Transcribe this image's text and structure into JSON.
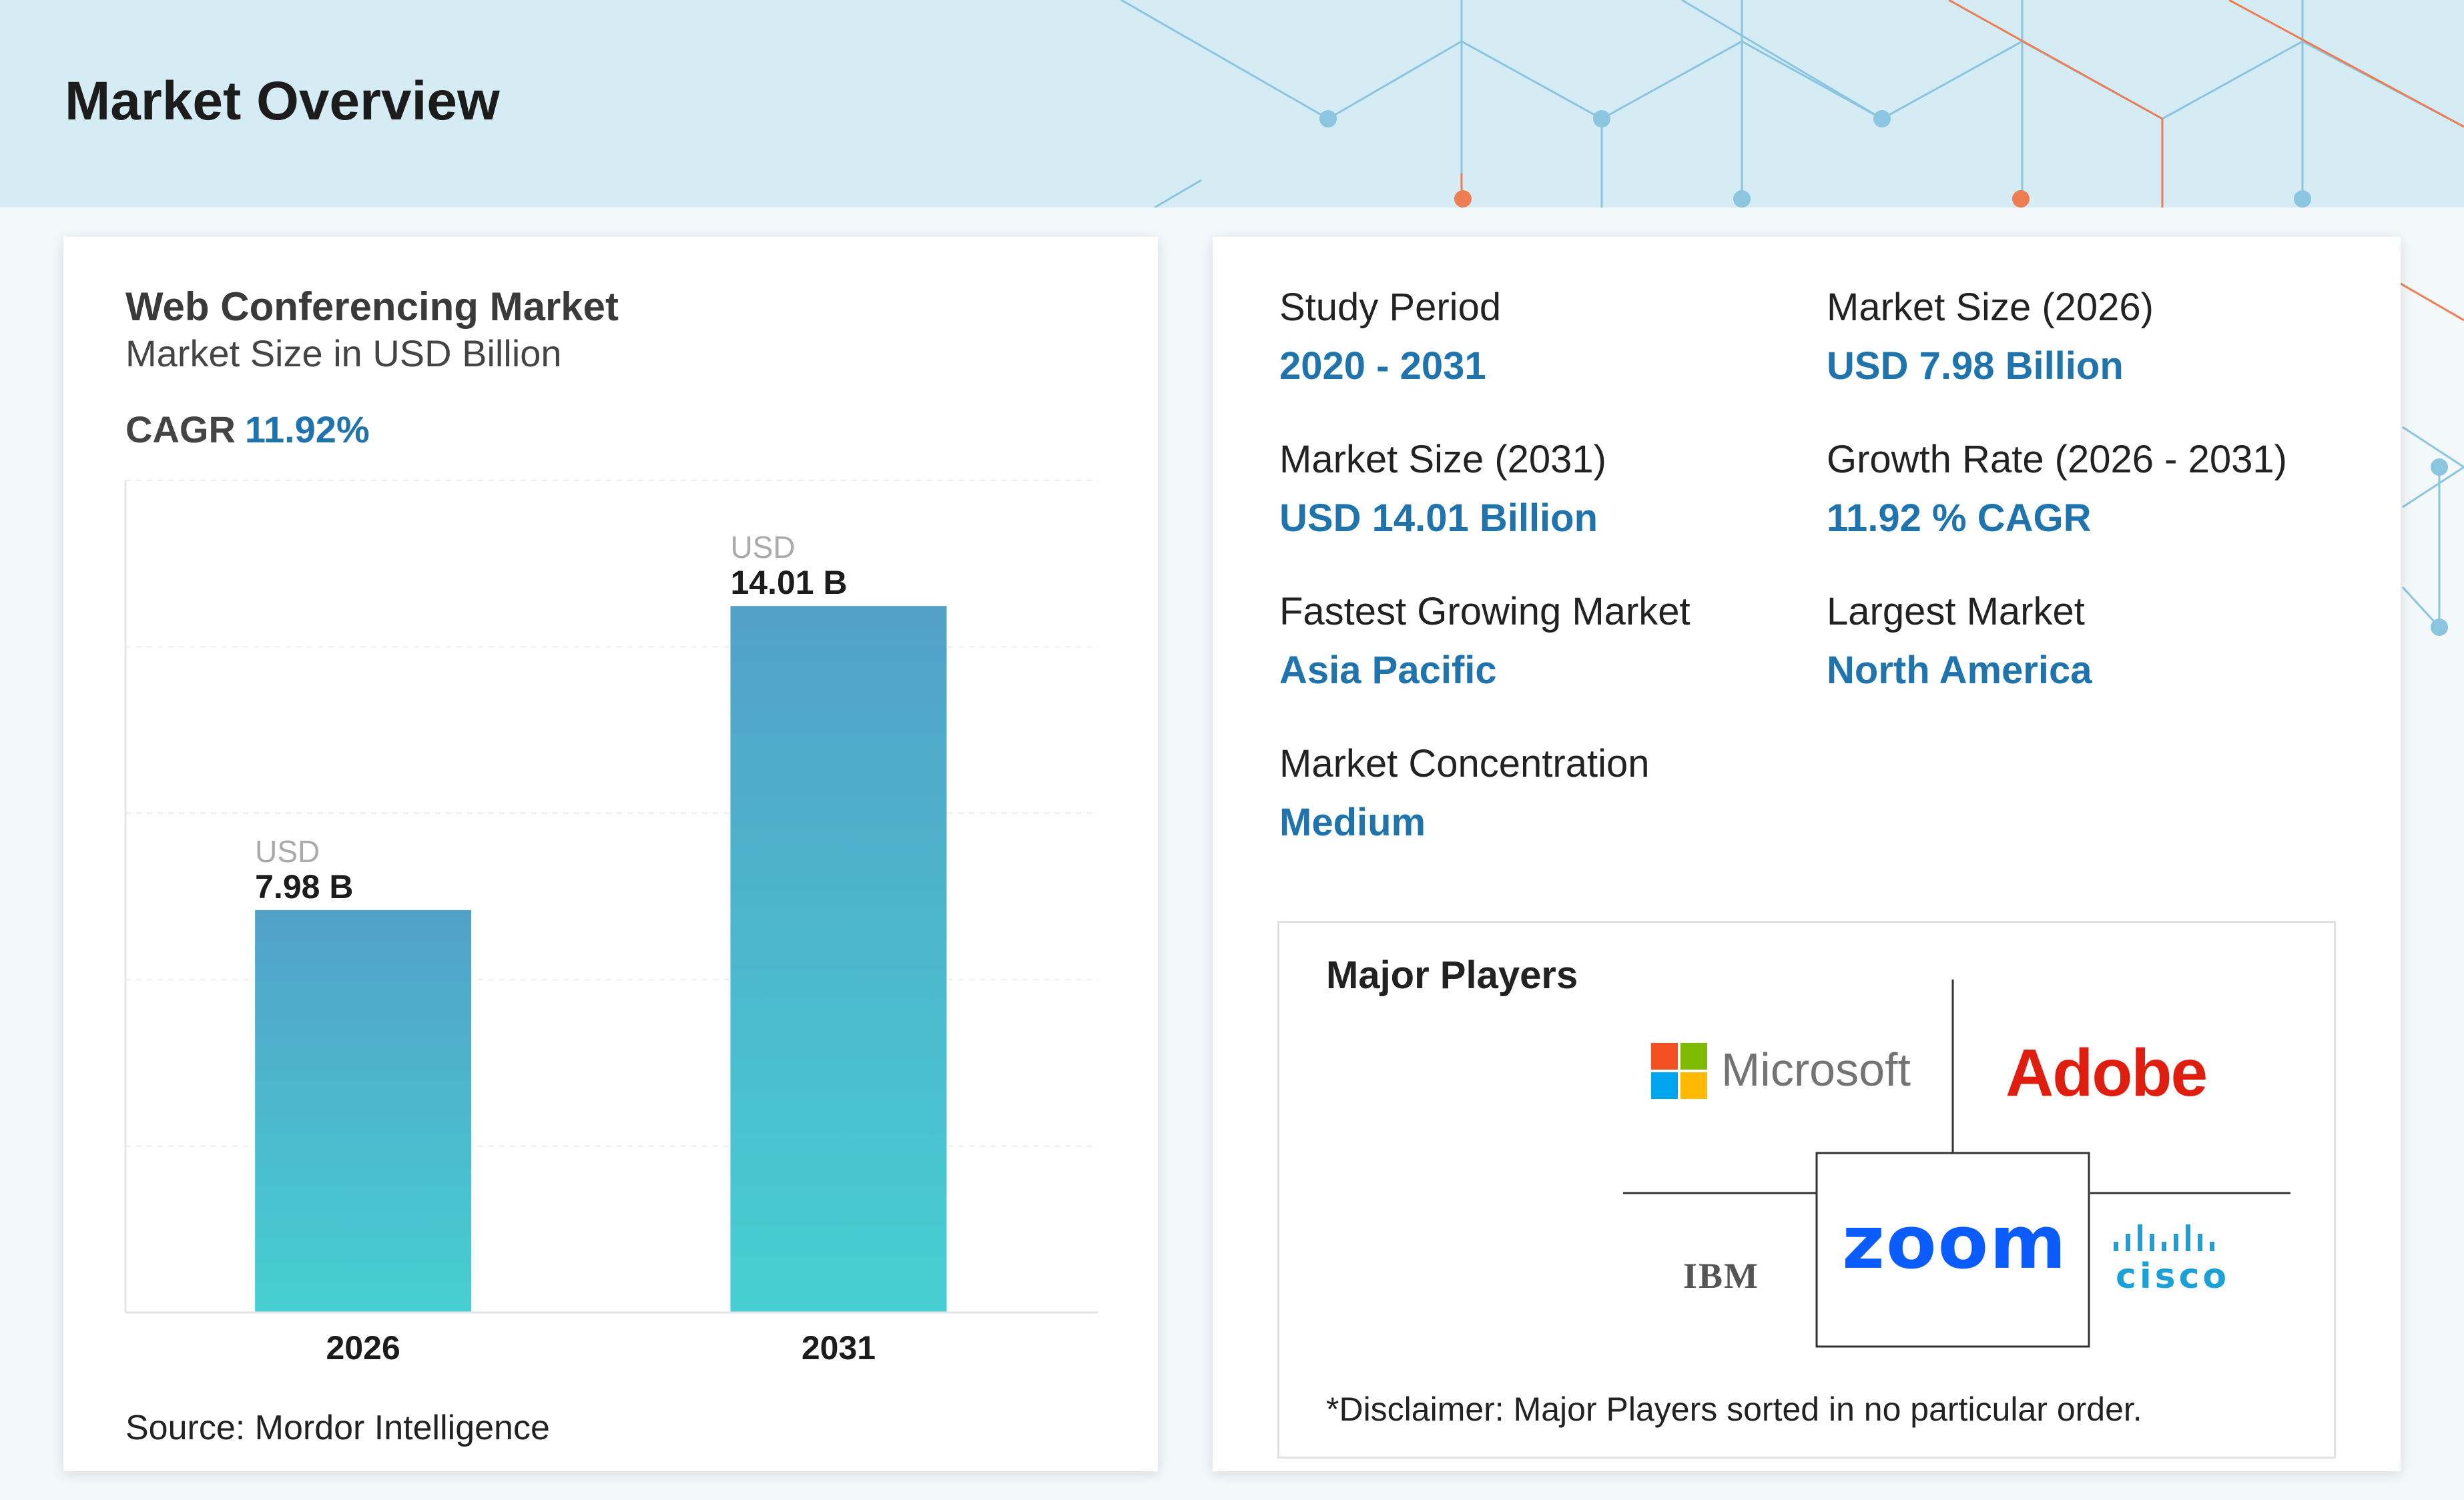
{
  "header": {
    "title": "Market Overview"
  },
  "chart_card": {
    "title": "Web Conferencing Market",
    "subtitle": "Market Size in USD Billion",
    "cagr_label": "CAGR",
    "cagr_value": "11.92%",
    "source": "Source: Mordor Intelligence"
  },
  "chart_data": {
    "type": "bar",
    "categories": [
      "2026",
      "2031"
    ],
    "values": [
      7.98,
      14.01
    ],
    "value_prefix": "USD",
    "value_labels": [
      "7.98 B",
      "14.01 B"
    ],
    "title": "Web Conferencing Market",
    "subtitle": "Market Size in USD Billion",
    "xlabel": "",
    "ylabel": "",
    "ylim": [
      0,
      16.5
    ],
    "grid": true,
    "bar_gradient": [
      "#52a1c8",
      "#46cfd2"
    ]
  },
  "stats": [
    {
      "label": "Study Period",
      "value": "2020 - 2031"
    },
    {
      "label": "Market Size (2026)",
      "value": "USD 7.98 Billion"
    },
    {
      "label": "Market Size (2031)",
      "value": "USD 14.01 Billion"
    },
    {
      "label": "Growth Rate (2026 - 2031)",
      "value": "11.92 % CAGR"
    },
    {
      "label": "Fastest Growing Market",
      "value": "Asia Pacific"
    },
    {
      "label": "Largest Market",
      "value": "North America"
    },
    {
      "label": "Market Concentration",
      "value": "Medium"
    }
  ],
  "players": {
    "title": "Major Players",
    "logos": [
      "Microsoft",
      "Adobe",
      "IBM",
      "zoom",
      "cisco"
    ],
    "disclaimer": "*Disclaimer: Major Players sorted in no particular order."
  },
  "colors": {
    "accent": "#1f74ad",
    "header_bg": "#d6ecf4",
    "adobe_red": "#e01e0f",
    "zoom_blue": "#0b5cff",
    "cisco_blue": "#1ba0d7"
  }
}
